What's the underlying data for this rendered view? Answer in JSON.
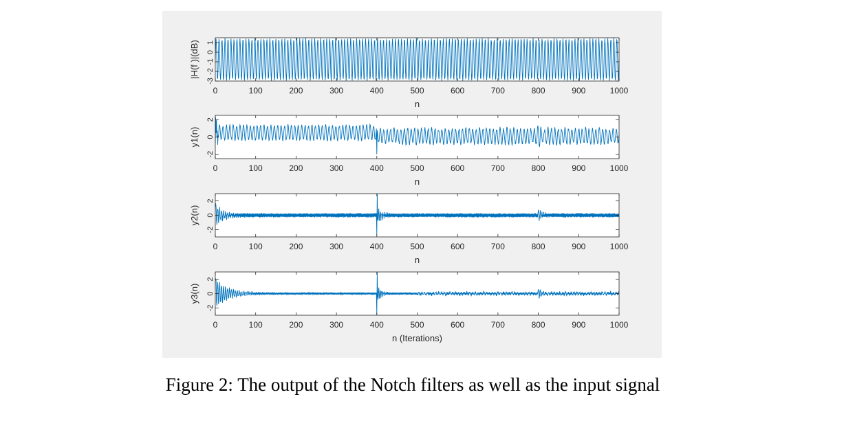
{
  "figure": {
    "caption": "Figure 2: The output of the Notch filters as well as the input signal",
    "series_color": "#0072bd",
    "background": "#f0f0f0"
  },
  "chart_data": [
    {
      "type": "line",
      "ylabel": "|H(f )|(dB)",
      "xlabel": "n",
      "xlim": [
        0,
        1000
      ],
      "ylim": [
        -3,
        1.5
      ],
      "xticks": [
        "0",
        "100",
        "200",
        "300",
        "400",
        "500",
        "600",
        "700",
        "800",
        "900",
        "1000"
      ],
      "yticks": [
        "1",
        "0",
        "-1",
        "-2",
        "-3"
      ],
      "signal": {
        "kind": "dense_oscillation",
        "min": -3,
        "max": 1.5,
        "cycles": 135
      }
    },
    {
      "type": "line",
      "ylabel": "y1(n)",
      "xlabel": "n",
      "xlim": [
        0,
        1000
      ],
      "ylim": [
        -2.5,
        2.5
      ],
      "xticks": [
        "0",
        "100",
        "200",
        "300",
        "400",
        "500",
        "600",
        "700",
        "800",
        "900",
        "1000"
      ],
      "yticks": [
        "2",
        "0",
        "-2"
      ],
      "signal": {
        "before_400": {
          "min": -0.5,
          "max": 1.5
        },
        "after_400": {
          "min": -1.0,
          "max": 1.2
        },
        "spike_at": 400,
        "spike_min": -2.0,
        "burst_at": 800,
        "burst_amplitude": 1.5
      }
    },
    {
      "type": "line",
      "ylabel": "y2(n)",
      "xlabel": "n",
      "xlim": [
        0,
        1000
      ],
      "ylim": [
        -3,
        3
      ],
      "xticks": [
        "0",
        "100",
        "200",
        "300",
        "400",
        "500",
        "600",
        "700",
        "800",
        "900",
        "1000"
      ],
      "yticks": [
        "2",
        "0",
        "-2"
      ],
      "signal": {
        "start_peak": 1.5,
        "steady_amplitude": 0.3,
        "spike_at": 400,
        "spike_max": 3.0,
        "spike_min": -2.5,
        "burst_at": 800,
        "burst_amplitude": 1.0
      }
    },
    {
      "type": "line",
      "ylabel": "y3(n)",
      "xlabel": "n (Iterations)",
      "xlim": [
        0,
        1000
      ],
      "ylim": [
        -3,
        3
      ],
      "xticks": [
        "0",
        "100",
        "200",
        "300",
        "400",
        "500",
        "600",
        "700",
        "800",
        "900",
        "1000"
      ],
      "yticks": [
        "2",
        "0",
        "-2"
      ],
      "signal": {
        "start_peak": 2.0,
        "steady_amplitude": 0.15,
        "spike_at": 400,
        "spike_max": 3.0,
        "spike_min": -3.0,
        "burst_at": 800,
        "burst_amplitude": 0.9
      }
    }
  ]
}
